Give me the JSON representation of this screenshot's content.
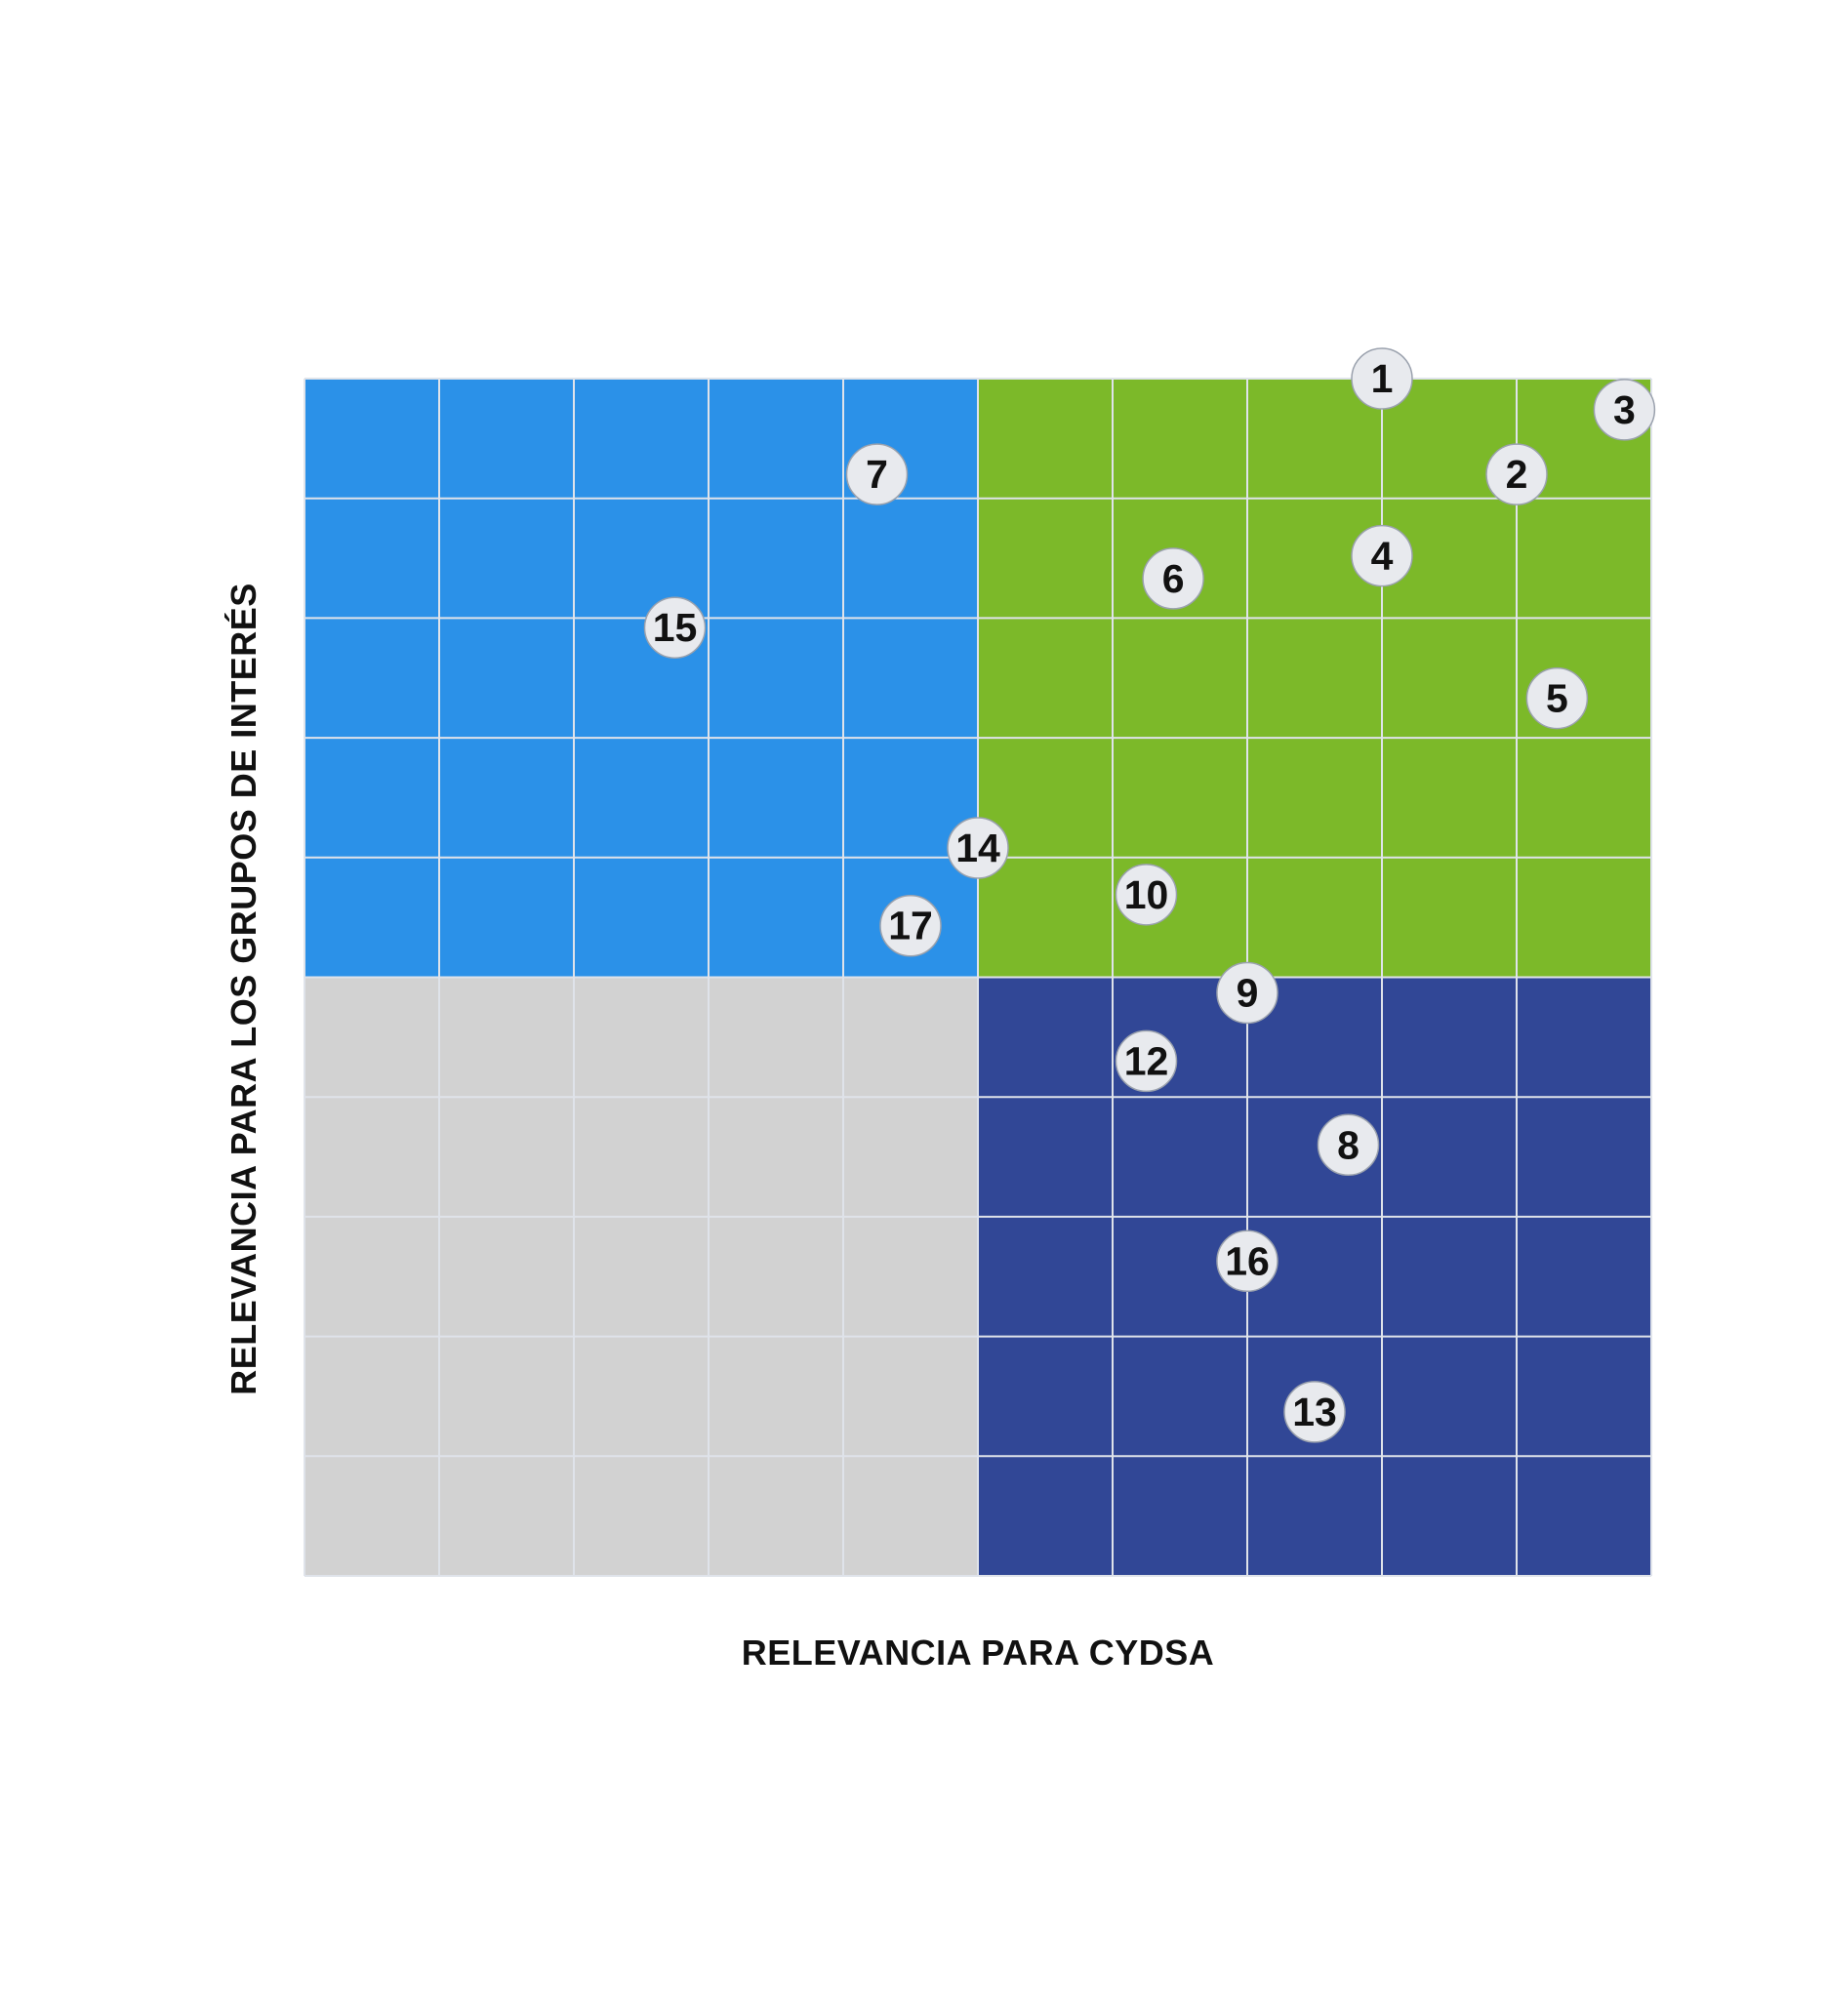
{
  "chart_data": {
    "type": "scatter",
    "title": "",
    "xlabel": "RELEVANCIA PARA CYDSA",
    "ylabel": "RELEVANCIA PARA LOS GRUPOS DE INTERÉS",
    "xlim": [
      0,
      10
    ],
    "ylim": [
      0,
      10
    ],
    "grid": true,
    "quadrants": {
      "top_left": "#2b91e8",
      "top_right": "#7cb929",
      "bottom_left": "#d2d2d2",
      "bottom_right": "#314796"
    },
    "marker_fill": "#e8eaee",
    "points": [
      {
        "label": "1",
        "x": 8.0,
        "y": 10.0
      },
      {
        "label": "2",
        "x": 9.0,
        "y": 9.2
      },
      {
        "label": "3",
        "x": 9.8,
        "y": 9.74
      },
      {
        "label": "4",
        "x": 8.0,
        "y": 8.52
      },
      {
        "label": "5",
        "x": 9.3,
        "y": 7.33
      },
      {
        "label": "6",
        "x": 6.45,
        "y": 8.33
      },
      {
        "label": "7",
        "x": 4.25,
        "y": 9.2
      },
      {
        "label": "8",
        "x": 7.75,
        "y": 3.6
      },
      {
        "label": "9",
        "x": 7.0,
        "y": 4.87
      },
      {
        "label": "10",
        "x": 6.25,
        "y": 5.69
      },
      {
        "label": "12",
        "x": 6.25,
        "y": 4.3
      },
      {
        "label": "13",
        "x": 7.5,
        "y": 1.37
      },
      {
        "label": "14",
        "x": 5.0,
        "y": 6.08
      },
      {
        "label": "15",
        "x": 2.75,
        "y": 7.92
      },
      {
        "label": "16",
        "x": 7.0,
        "y": 2.63
      },
      {
        "label": "17",
        "x": 4.5,
        "y": 5.43
      }
    ]
  }
}
